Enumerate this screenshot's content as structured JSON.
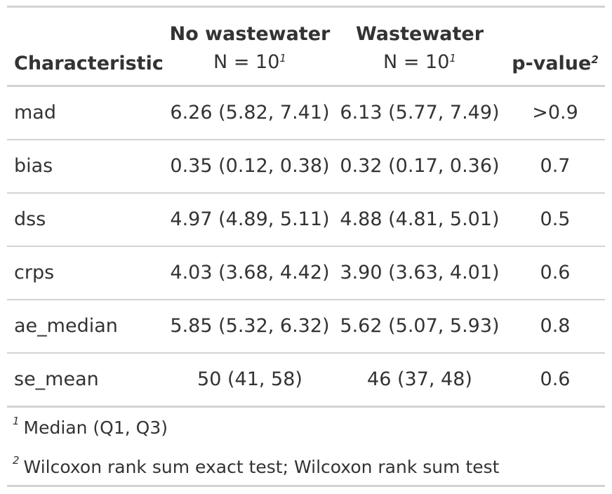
{
  "table": {
    "headers": {
      "characteristic": "Characteristic",
      "no_wastewater": "No wastewater",
      "no_wastewater_n": "N = 10",
      "no_wastewater_mark": "1",
      "wastewater": "Wastewater",
      "wastewater_n": "N = 10",
      "wastewater_mark": "1",
      "pvalue": "p-value",
      "pvalue_mark": "2"
    },
    "rows": [
      {
        "label": "mad",
        "no_wastewater": "6.26 (5.82, 7.41)",
        "wastewater": "6.13 (5.77, 7.49)",
        "pvalue": ">0.9"
      },
      {
        "label": "bias",
        "no_wastewater": "0.35 (0.12, 0.38)",
        "wastewater": "0.32 (0.17, 0.36)",
        "pvalue": "0.7"
      },
      {
        "label": "dss",
        "no_wastewater": "4.97 (4.89, 5.11)",
        "wastewater": "4.88 (4.81, 5.01)",
        "pvalue": "0.5"
      },
      {
        "label": "crps",
        "no_wastewater": "4.03 (3.68, 4.42)",
        "wastewater": "3.90 (3.63, 4.01)",
        "pvalue": "0.6"
      },
      {
        "label": "ae_median",
        "no_wastewater": "5.85 (5.32, 6.32)",
        "wastewater": "5.62 (5.07, 5.93)",
        "pvalue": "0.8"
      },
      {
        "label": "se_mean",
        "no_wastewater": "50 (41, 58)",
        "wastewater": "46 (37, 48)",
        "pvalue": "0.6"
      }
    ],
    "footnotes": [
      {
        "mark": "1",
        "text": "Median (Q1, Q3)"
      },
      {
        "mark": "2",
        "text": "Wilcoxon rank sum exact test; Wilcoxon rank sum test"
      }
    ]
  }
}
